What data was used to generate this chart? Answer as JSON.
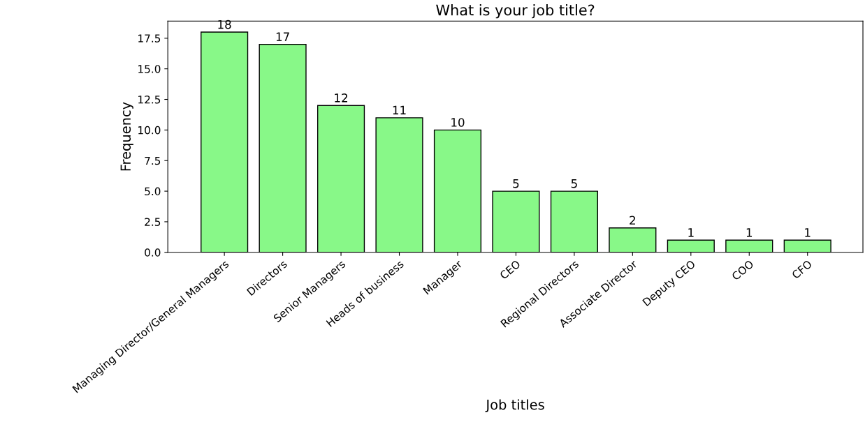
{
  "chart_data": {
    "type": "bar",
    "title": "What is your job title?",
    "xlabel": "Job titles",
    "ylabel": "Frequency",
    "categories": [
      "Managing Director/General Managers",
      "Directors",
      "Senior Managers",
      "Heads of business",
      "Manager",
      "CEO",
      "Regional Directors",
      "Associate Director",
      "Deputy CEO",
      "COO",
      "CFO"
    ],
    "values": [
      18,
      17,
      12,
      11,
      10,
      5,
      5,
      2,
      1,
      1,
      1
    ],
    "color": "#88f888",
    "ylim": [
      0,
      18.9
    ],
    "yticks": [
      {
        "value": 0,
        "label": "0.0"
      },
      {
        "value": 2.5,
        "label": "2.5"
      },
      {
        "value": 5,
        "label": "5.0"
      },
      {
        "value": 7.5,
        "label": "7.5"
      },
      {
        "value": 10,
        "label": "10.0"
      },
      {
        "value": 12.5,
        "label": "12.5"
      },
      {
        "value": 15,
        "label": "15.0"
      },
      {
        "value": 17.5,
        "label": "17.5"
      }
    ],
    "data_labels": true,
    "grid": false
  }
}
